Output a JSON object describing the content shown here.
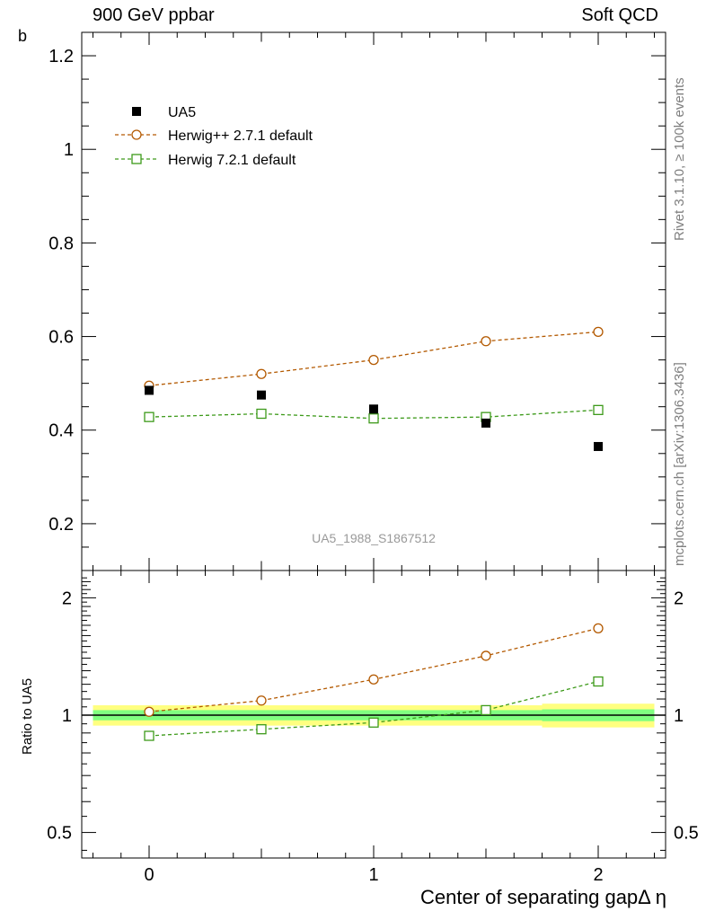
{
  "header": {
    "left": "900 GeV ppbar",
    "right": "Soft QCD"
  },
  "side_labels": {
    "rivet": "Rivet 3.1.10, ≥ 100k events",
    "mcplots": "mcplots.cern.ch [arXiv:1306.3436]"
  },
  "colors": {
    "data": "#000000",
    "herwigpp": "#b35900",
    "herwig7": "#3d9a1a",
    "band_inner": "#80ff80",
    "band_outer": "#ffff80",
    "watermark": "#999999"
  },
  "chart_data": [
    {
      "type": "scatter",
      "panel": "main",
      "xlabel": "",
      "ylabel": "b",
      "xlim": [
        -0.3,
        2.3
      ],
      "ylim": [
        0.1,
        1.25
      ],
      "x_ticks": [
        0,
        0.5,
        1,
        1.5,
        2
      ],
      "y_ticks": [
        0.2,
        0.4,
        0.6,
        0.8,
        1,
        1.2
      ],
      "y_tick_labels": [
        "0.2",
        "0.4",
        "0.6",
        "0.8",
        "1",
        "1.2"
      ],
      "watermark": "UA5_1988_S1867512",
      "legend_position": "top-left",
      "series": [
        {
          "name": "UA5",
          "style": "data",
          "x": [
            0,
            0.5,
            1,
            1.5,
            2
          ],
          "y": [
            0.485,
            0.475,
            0.445,
            0.415,
            0.365
          ]
        },
        {
          "name": "Herwig++ 2.7.1 default",
          "style": "herwigpp",
          "x": [
            0,
            0.5,
            1,
            1.5,
            2
          ],
          "y": [
            0.495,
            0.52,
            0.55,
            0.59,
            0.61
          ]
        },
        {
          "name": "Herwig 7.2.1 default",
          "style": "herwig7",
          "x": [
            0,
            0.5,
            1,
            1.5,
            2
          ],
          "y": [
            0.428,
            0.435,
            0.425,
            0.428,
            0.443
          ]
        }
      ]
    },
    {
      "type": "line",
      "panel": "ratio",
      "xlabel": "Center of separating gapΔ η",
      "ylabel": "Ratio to UA5",
      "xlim": [
        -0.3,
        2.3
      ],
      "ylim": [
        0.43,
        2.35
      ],
      "y_scale": "log",
      "x_ticks": [
        0,
        1,
        2
      ],
      "x_tick_labels": [
        "0",
        "1",
        "2"
      ],
      "y_ticks": [
        0.5,
        1,
        2
      ],
      "y_tick_labels": [
        "0.5",
        "1",
        "2"
      ],
      "reference_band": {
        "x_edges": [
          -0.25,
          0.25,
          0.75,
          1.25,
          1.75,
          2.25
        ],
        "inner": [
          [
            0.97,
            1.03
          ],
          [
            0.97,
            1.03
          ],
          [
            0.97,
            1.03
          ],
          [
            0.97,
            1.03
          ],
          [
            0.965,
            1.035
          ]
        ],
        "outer": [
          [
            0.94,
            1.06
          ],
          [
            0.94,
            1.06
          ],
          [
            0.94,
            1.06
          ],
          [
            0.94,
            1.06
          ],
          [
            0.93,
            1.07
          ]
        ]
      },
      "series": [
        {
          "name": "Herwig++ 2.7.1 default",
          "style": "herwigpp",
          "x": [
            0,
            0.5,
            1,
            1.5,
            2
          ],
          "y": [
            1.02,
            1.09,
            1.235,
            1.42,
            1.67
          ]
        },
        {
          "name": "Herwig 7.2.1 default",
          "style": "herwig7",
          "x": [
            0,
            0.5,
            1,
            1.5,
            2
          ],
          "y": [
            0.885,
            0.92,
            0.957,
            1.03,
            1.22
          ]
        }
      ]
    }
  ]
}
